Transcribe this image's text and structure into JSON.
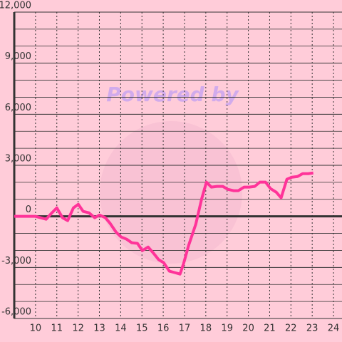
{
  "chart_data": {
    "type": "line",
    "annotation": "Powered by",
    "x": [
      9,
      10,
      10.5,
      10.74,
      11,
      11.27,
      11.51,
      11.78,
      12.01,
      12.24,
      12.51,
      12.78,
      13.01,
      13.28,
      13.51,
      13.78,
      14.02,
      14.28,
      14.52,
      14.79,
      15.02,
      15.29,
      15.52,
      15.79,
      16.02,
      16.29,
      16.53,
      16.79,
      16.96,
      17.19,
      17.53,
      17.8,
      18.03,
      18.26,
      18.53,
      18.8,
      19.03,
      19.3,
      19.53,
      19.8,
      20.04,
      20.3,
      20.54,
      20.81,
      21.04,
      21.31,
      21.54,
      21.81,
      22.04,
      22.31,
      22.55,
      22.81,
      23.05
    ],
    "series": [
      {
        "color": "#ff3399",
        "values": [
          0,
          0,
          -170,
          170,
          500,
          -80,
          -250,
          500,
          710,
          290,
          210,
          -80,
          80,
          -80,
          -420,
          -920,
          -1210,
          -1340,
          -1550,
          -1590,
          -2010,
          -1800,
          -2130,
          -2550,
          -2720,
          -3220,
          -3300,
          -3390,
          -2760,
          -1720,
          -460,
          1000,
          2010,
          1720,
          1760,
          1760,
          1590,
          1510,
          1510,
          1720,
          1720,
          1760,
          2010,
          2010,
          1630,
          1420,
          1090,
          2180,
          2300,
          2340,
          2510,
          2510,
          2550
        ]
      }
    ],
    "xlim": [
      9,
      24.4
    ],
    "xticks": [
      10,
      11,
      12,
      13,
      14,
      15,
      16,
      17,
      18,
      19,
      20,
      21,
      22,
      23,
      24
    ],
    "ylim": [
      -6000,
      12000
    ],
    "yticks": [
      {
        "value": -6000,
        "label": "-6,000"
      },
      {
        "value": -3000,
        "label": "-3,000"
      },
      0,
      {
        "value": 3000,
        "label": "3,000"
      },
      {
        "value": 6000,
        "label": "6,000"
      },
      {
        "value": 9000,
        "label": "9,000"
      },
      {
        "value": 12000,
        "label": "12,000"
      }
    ],
    "yminorticks": [
      -5000,
      -4000,
      -2000,
      -1000,
      1000,
      2000,
      4000,
      5000,
      7000,
      8000,
      10000,
      11000
    ],
    "grid": true
  }
}
